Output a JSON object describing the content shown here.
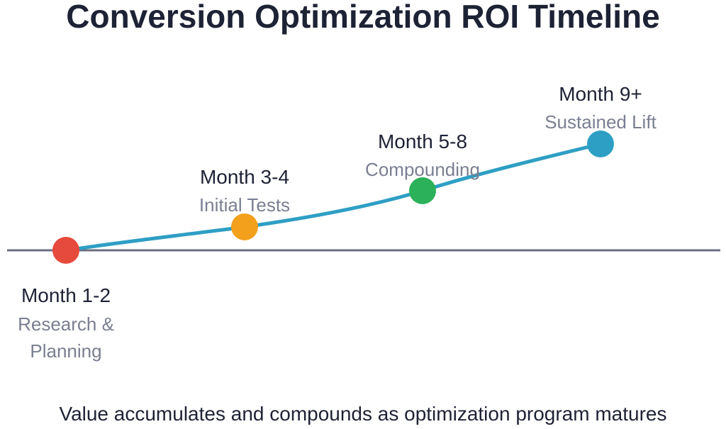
{
  "title": "Conversion Optimization ROI Timeline",
  "caption": "Value accumulates and compounds as optimization program matures",
  "colors": {
    "title": "#1e2235",
    "baseline": "#6b6f82",
    "curve": "#2e9fc4",
    "sublabel": "#7a7f91"
  },
  "stages": [
    {
      "label": "Month 1-2",
      "sub": [
        "Research &",
        "Planning"
      ],
      "color": "#e64a3c"
    },
    {
      "label": "Month 3-4",
      "sub": [
        "Initial Tests"
      ],
      "color": "#f3a01d"
    },
    {
      "label": "Month 5-8",
      "sub": [
        "Compounding"
      ],
      "color": "#2bb15a"
    },
    {
      "label": "Month 9+",
      "sub": [
        "Sustained Lift"
      ],
      "color": "#2e9fc4"
    }
  ]
}
